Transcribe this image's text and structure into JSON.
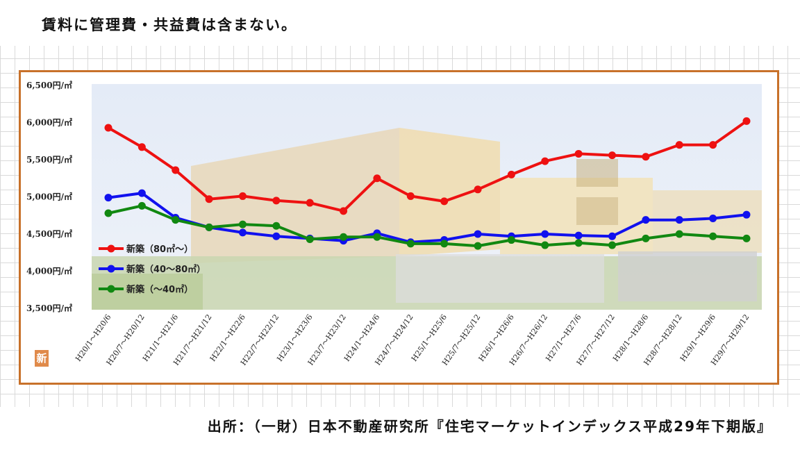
{
  "header": {
    "note": "賃料に管理費・共益費は含まない。"
  },
  "footer": {
    "source": "出所：（一財）日本不動産研究所『住宅マーケットインデックス平成29年下期版』"
  },
  "badge": {
    "label": "新"
  },
  "chart_data": {
    "type": "line",
    "title": "",
    "xlabel": "",
    "ylabel": "",
    "ylim": [
      3500,
      6500
    ],
    "y_ticks": [
      {
        "value": 6500,
        "label": "6,500円/㎡"
      },
      {
        "value": 6000,
        "label": "6,000円/㎡"
      },
      {
        "value": 5500,
        "label": "5,500円/㎡"
      },
      {
        "value": 5000,
        "label": "5,000円/㎡"
      },
      {
        "value": 4500,
        "label": "4,500円/㎡"
      },
      {
        "value": 4000,
        "label": "4,000円/㎡"
      },
      {
        "value": 3500,
        "label": "3,500円/㎡"
      }
    ],
    "categories": [
      "H20/1～H20/6",
      "H20/7～H20/12",
      "H21/1～H21/6",
      "H21/7～H21/12",
      "H22/1～H22/6",
      "H22/7～H22/12",
      "H23/1～H23/6",
      "H23/7～H23/12",
      "H24/1～H24/6",
      "H24/7～H24/12",
      "H25/1～H25/6",
      "H25/7～H25/12",
      "H26/1～H26/6",
      "H26/7～H26/12",
      "H27/1～H27/6",
      "H27/7～H27/12",
      "H28/1～H28/6",
      "H28/7～H28/12",
      "H29/1～H29/6",
      "H29/7～H29/12"
    ],
    "legend_position": "left-middle",
    "grid": false,
    "series": [
      {
        "name": "新築（80㎡～）",
        "color": "#ee1111",
        "values": [
          5930,
          5670,
          5360,
          4970,
          5010,
          4950,
          4920,
          4810,
          5250,
          5010,
          4940,
          5100,
          5300,
          5480,
          5580,
          5560,
          5540,
          5700,
          5700,
          6020
        ]
      },
      {
        "name": "新築（40～80㎡）",
        "color": "#1111ee",
        "values": [
          4990,
          5050,
          4720,
          4590,
          4520,
          4470,
          4440,
          4410,
          4510,
          4390,
          4420,
          4500,
          4470,
          4500,
          4480,
          4470,
          4690,
          4690,
          4710,
          4760
        ]
      },
      {
        "name": "新築（～40㎡）",
        "color": "#118811",
        "values": [
          4780,
          4880,
          4690,
          4590,
          4630,
          4610,
          4430,
          4460,
          4460,
          4370,
          4370,
          4340,
          4420,
          4350,
          4380,
          4350,
          4440,
          4500,
          4470,
          4440
        ]
      }
    ]
  }
}
